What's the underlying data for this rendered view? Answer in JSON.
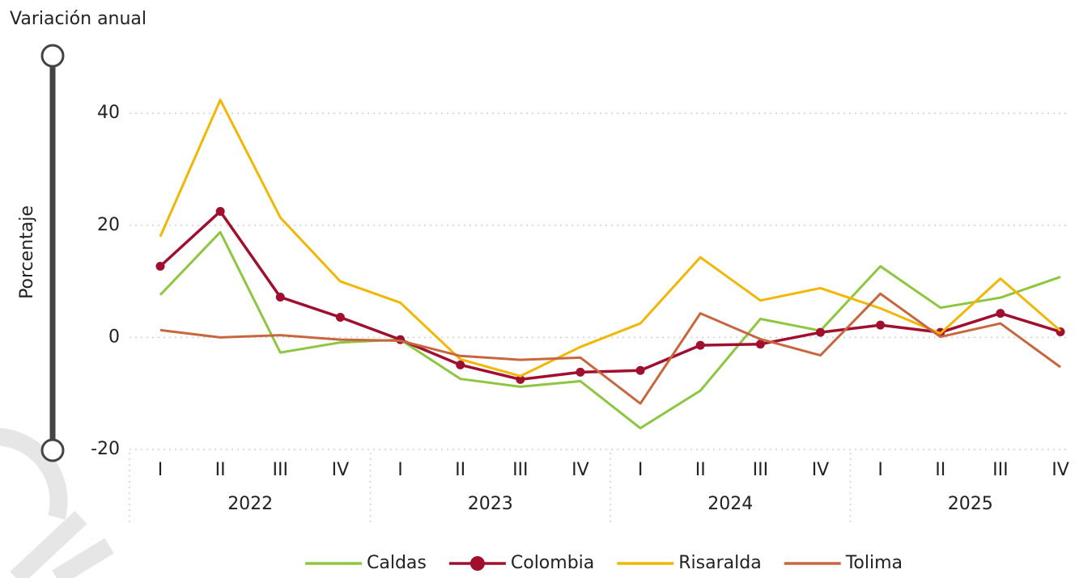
{
  "chart_data": {
    "type": "line",
    "title": "Variación anual",
    "y_label": "Porcentaje",
    "categories": [
      "I",
      "II",
      "III",
      "IV",
      "I",
      "II",
      "III",
      "IV",
      "I",
      "II",
      "III",
      "IV",
      "I",
      "II",
      "III",
      "IV"
    ],
    "year_groups": [
      "2022",
      "2023",
      "2024",
      "2025"
    ],
    "ylim": [
      -20,
      45
    ],
    "yticks": [
      -20,
      0,
      20,
      40
    ],
    "grid": true,
    "legend": "bottom",
    "series": [
      {
        "name": "Caldas",
        "color": "#8dc63f",
        "marker": false,
        "values": [
          7.6,
          18.8,
          -2.7,
          -0.9,
          -0.4,
          -7.4,
          -8.8,
          -7.8,
          -16.2,
          -9.5,
          3.3,
          1.2,
          12.7,
          5.3,
          7.1,
          10.8
        ]
      },
      {
        "name": "Colombia",
        "color": "#a0102e",
        "marker": true,
        "values": [
          12.7,
          22.5,
          7.2,
          3.6,
          -0.4,
          -4.9,
          -7.5,
          -6.2,
          -5.9,
          -1.4,
          -1.2,
          0.9,
          2.2,
          0.9,
          4.3,
          1.0
        ]
      },
      {
        "name": "Risaralda",
        "color": "#f2b705",
        "marker": false,
        "values": [
          18,
          42.4,
          21.4,
          10,
          6.2,
          -3.9,
          -6.9,
          -1.7,
          2.5,
          14.3,
          6.6,
          8.8,
          5.2,
          0.7,
          10.5,
          1.2
        ]
      },
      {
        "name": "Tolima",
        "color": "#c8663f",
        "marker": false,
        "values": [
          1.3,
          0,
          0.4,
          -0.4,
          -0.6,
          -3.3,
          -4,
          -3.6,
          -11.8,
          4.3,
          -0.3,
          -3.2,
          7.8,
          0.1,
          2.5,
          -5.3
        ]
      }
    ]
  }
}
